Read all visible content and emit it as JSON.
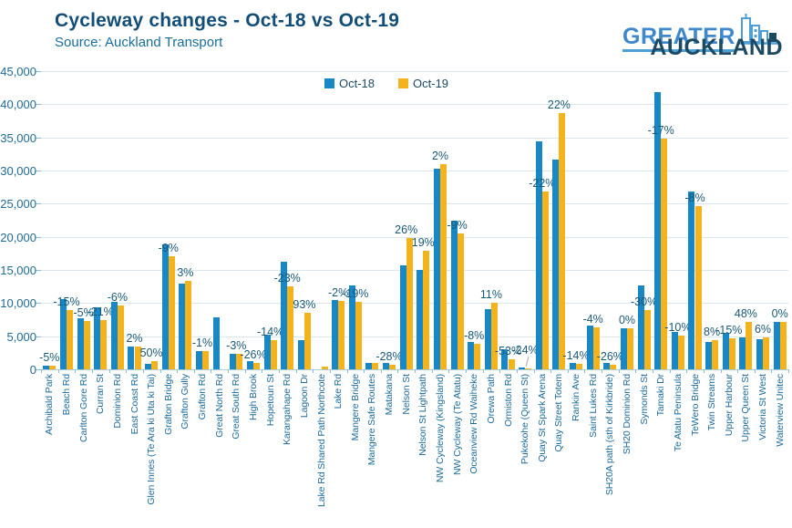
{
  "header": {
    "title": "Cycleway changes - Oct-18 vs Oct-19",
    "source": "Source: Auckland Transport"
  },
  "logo": {
    "line1": "GREATER",
    "line2": "AUCKLAND",
    "icon": "city-skyline-icon"
  },
  "legend": [
    {
      "label": "Oct-18",
      "color": "#1787c5"
    },
    {
      "label": "Oct-19",
      "color": "#f5b31b"
    }
  ],
  "colors": {
    "oct18_blue": "#1787c5",
    "oct19_yellow": "#f5b31b",
    "title_navy": "#124e78",
    "axis_text_blue": "#1f6b94",
    "gridline": "#dae7ee"
  },
  "chart_data": {
    "type": "bar",
    "title": "Cycleway changes - Oct-18 vs Oct-19",
    "subtitle": "Source: Auckland Transport",
    "ylabel": "",
    "xlabel": "",
    "ylim": [
      0,
      45000
    ],
    "ytick_interval": 5000,
    "ytick_labels": [
      "0",
      "5,000",
      "10,000",
      "15,000",
      "20,000",
      "25,000",
      "30,000",
      "35,000",
      "40,000",
      "45,000"
    ],
    "grid": true,
    "legend_position": "top-center",
    "categories": [
      "Archibald Park",
      "Beach Rd",
      "Carlton Gore Rd",
      "Curran St",
      "Dominion Rd",
      "East Coast Rd",
      "Glen Innes (Te Ara ki Uta ki Tai)",
      "Grafton Bridge",
      "Grafton Gully",
      "Grafton Rd",
      "Great North Rd",
      "Great South Rd",
      "High Brook",
      "Hopetoun St",
      "Karangahape Rd",
      "Lagoon Dr",
      "Lake Rd Shared Path Northcote",
      "Lake Rd",
      "Mangere Bridge",
      "Mangere Safe Routes",
      "Matakana",
      "Nelson St",
      "Nelson St Lightpath",
      "NW Cycleway (Kingsland)",
      "NW Cycleway (Te Atatu)",
      "Oceanview Rd Waiheke",
      "Orewa Path",
      "Ormiston Rd",
      "Pukekohe (Queen St)",
      "Quay St Spark Arena",
      "Quay Street Totem",
      "Rankin Ave",
      "Saint Lukes Rd",
      "SH20A path (sth of Kirkbride)",
      "SH20 Dominion Rd",
      "Symonds St",
      "Tamaki Dr",
      "Te Atatu Peninsula",
      "TeWero Bridge",
      "Twin Streams",
      "Upper Harbour",
      "Upper Queen St",
      "Victoria St West",
      "Waterview Unitec"
    ],
    "series": [
      {
        "name": "Oct-18",
        "color": "#1787c5",
        "values": [
          600,
          10600,
          7700,
          9400,
          10200,
          3400,
          800,
          18800,
          12900,
          2800,
          7900,
          2400,
          1300,
          5200,
          16200,
          4400,
          null,
          10500,
          12600,
          1000,
          1000,
          15700,
          15000,
          30300,
          22500,
          4200,
          9100,
          3100,
          250,
          34400,
          31700,
          1000,
          6600,
          1000,
          6250,
          12700,
          41900,
          5600,
          26800,
          4100,
          5500,
          4800,
          4600,
          7200
        ]
      },
      {
        "name": "Oct-19",
        "color": "#f5b31b",
        "values": [
          570,
          9000,
          7300,
          7400,
          9600,
          3470,
          1200,
          17100,
          13300,
          2770,
          null,
          2330,
          960,
          4470,
          12470,
          8490,
          400,
          10290,
          10200,
          1000,
          720,
          19780,
          17850,
          31000,
          20480,
          3860,
          10100,
          1460,
          190,
          26830,
          38670,
          860,
          6340,
          740,
          6250,
          8890,
          34780,
          5040,
          24660,
          4430,
          4680,
          7100,
          4880,
          7200
        ]
      }
    ],
    "pct_change_labels": [
      "-5%",
      "-15%",
      "-5%",
      "-21%",
      "-6%",
      "2%",
      "50%",
      "-9%",
      "3%",
      "-1%",
      null,
      "-3%",
      "-26%",
      "-14%",
      "-23%",
      "93%",
      null,
      "-2%",
      "-19%",
      null,
      "-28%",
      "26%",
      "19%",
      "2%",
      "-9%",
      "-8%",
      "11%",
      "-53%",
      "-24%",
      "-22%",
      "22%",
      "-14%",
      "-4%",
      "-26%",
      "0%",
      "-30%",
      "-17%",
      "-10%",
      "-8%",
      "8%",
      "-15%",
      "48%",
      "6%",
      "0%"
    ],
    "label_with_leader_line": "Pukekohe (Queen St)"
  }
}
